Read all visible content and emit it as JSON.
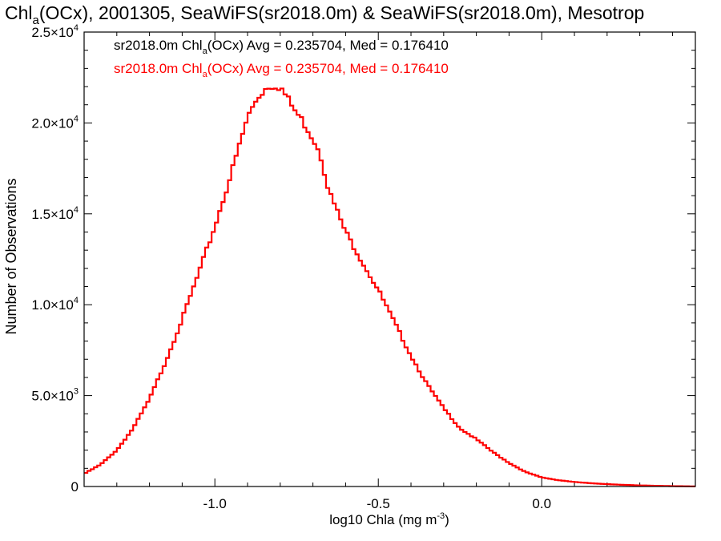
{
  "chart_data": {
    "type": "line",
    "title_parts": {
      "pre": "Chl",
      "sub": "a",
      "post": "(OCx), 2001305, SeaWiFS(sr2018.0m) & SeaWiFS(sr2018.0m), Mesotrop"
    },
    "xlabel_parts": {
      "pre": "log10 Chla (mg m",
      "sup": "-3",
      "post": ")"
    },
    "ylabel": "Number of Observations",
    "xlim": [
      -1.4,
      0.47
    ],
    "ylim": [
      0,
      25000
    ],
    "x_ticks": [
      {
        "value": -1.0,
        "label": "-1.0"
      },
      {
        "value": -0.5,
        "label": "-0.5"
      },
      {
        "value": 0.0,
        "label": "0.0"
      }
    ],
    "y_ticks": [
      {
        "value": 0,
        "mant": "0",
        "exp": ""
      },
      {
        "value": 5000,
        "mant": "5.0×10",
        "exp": "3"
      },
      {
        "value": 10000,
        "mant": "1.0×10",
        "exp": "4"
      },
      {
        "value": 15000,
        "mant": "1.5×10",
        "exp": "4"
      },
      {
        "value": 20000,
        "mant": "2.0×10",
        "exp": "4"
      },
      {
        "value": 25000,
        "mant": "2.5×10",
        "exp": "4"
      }
    ],
    "legend": [
      {
        "pre": "sr2018.0m Chl",
        "sub": "a",
        "post": "(OCx) Avg = 0.235704, Med = 0.176410",
        "color": "#000000"
      },
      {
        "pre": "sr2018.0m Chl",
        "sub": "a",
        "post": "(OCx) Avg = 0.235704, Med = 0.176410",
        "color": "#ff0000"
      }
    ],
    "series": [
      {
        "color": "#ff0000",
        "x": [
          -1.4,
          -1.35,
          -1.3,
          -1.25,
          -1.2,
          -1.15,
          -1.1,
          -1.05,
          -1.0,
          -0.95,
          -0.9,
          -0.87,
          -0.84,
          -0.82,
          -0.8,
          -0.78,
          -0.76,
          -0.72,
          -0.68,
          -0.65,
          -0.6,
          -0.55,
          -0.5,
          -0.45,
          -0.4,
          -0.35,
          -0.3,
          -0.25,
          -0.2,
          -0.15,
          -0.1,
          -0.05,
          0.0,
          0.05,
          0.1,
          0.15,
          0.2,
          0.25,
          0.3,
          0.35,
          0.4,
          0.45,
          0.47
        ],
        "values": [
          700,
          1200,
          2000,
          3200,
          4800,
          6900,
          9200,
          11700,
          14300,
          17200,
          20300,
          21400,
          22000,
          22100,
          22000,
          21400,
          20800,
          19800,
          18500,
          16200,
          14000,
          12400,
          10800,
          9000,
          7200,
          5600,
          4300,
          3200,
          2600,
          1900,
          1300,
          800,
          500,
          350,
          250,
          180,
          130,
          90,
          60,
          40,
          20,
          10,
          5
        ]
      }
    ]
  }
}
